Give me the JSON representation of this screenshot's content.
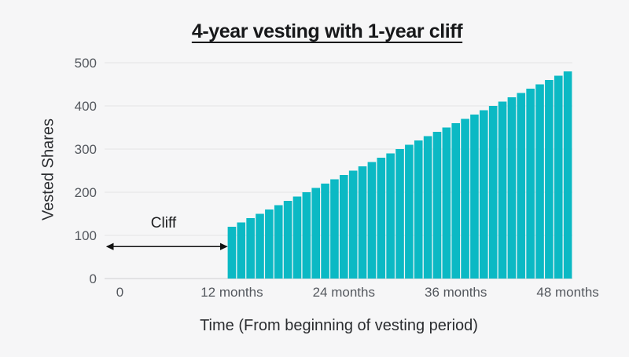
{
  "colors": {
    "background": "#f6f6f7",
    "bar": "#0bb9c4",
    "grid": "#e4e4e5",
    "tick_text": "#54585e",
    "axis_title_text": "#2a2c2f",
    "title_text": "#17181a",
    "annotation": "#131313"
  },
  "chart_data": {
    "type": "bar",
    "title": "4-year vesting with 1-year cliff",
    "xlabel": "Time (From beginning of vesting period)",
    "ylabel": "Vested Shares",
    "ylim": [
      0,
      500
    ],
    "y_ticks": [
      0,
      100,
      200,
      300,
      400,
      500
    ],
    "x_ticks": [
      {
        "month": 0,
        "label": "0"
      },
      {
        "month": 12,
        "label": "12 months"
      },
      {
        "month": 24,
        "label": "24 months"
      },
      {
        "month": 36,
        "label": "36 months"
      },
      {
        "month": 48,
        "label": "48 months"
      }
    ],
    "grid": "horizontal",
    "legend": "none",
    "months": [
      12,
      13,
      14,
      15,
      16,
      17,
      18,
      19,
      20,
      21,
      22,
      23,
      24,
      25,
      26,
      27,
      28,
      29,
      30,
      31,
      32,
      33,
      34,
      35,
      36,
      37,
      38,
      39,
      40,
      41,
      42,
      43,
      44,
      45,
      46,
      47,
      48
    ],
    "values": [
      120,
      130,
      140,
      150,
      160,
      170,
      180,
      190,
      200,
      210,
      220,
      230,
      240,
      250,
      260,
      270,
      280,
      290,
      300,
      310,
      320,
      330,
      340,
      350,
      360,
      370,
      380,
      390,
      400,
      410,
      420,
      430,
      440,
      450,
      460,
      470,
      480
    ],
    "annotation": {
      "text": "Cliff",
      "from_month": 0,
      "to_month": 12,
      "y_value": 75
    }
  }
}
